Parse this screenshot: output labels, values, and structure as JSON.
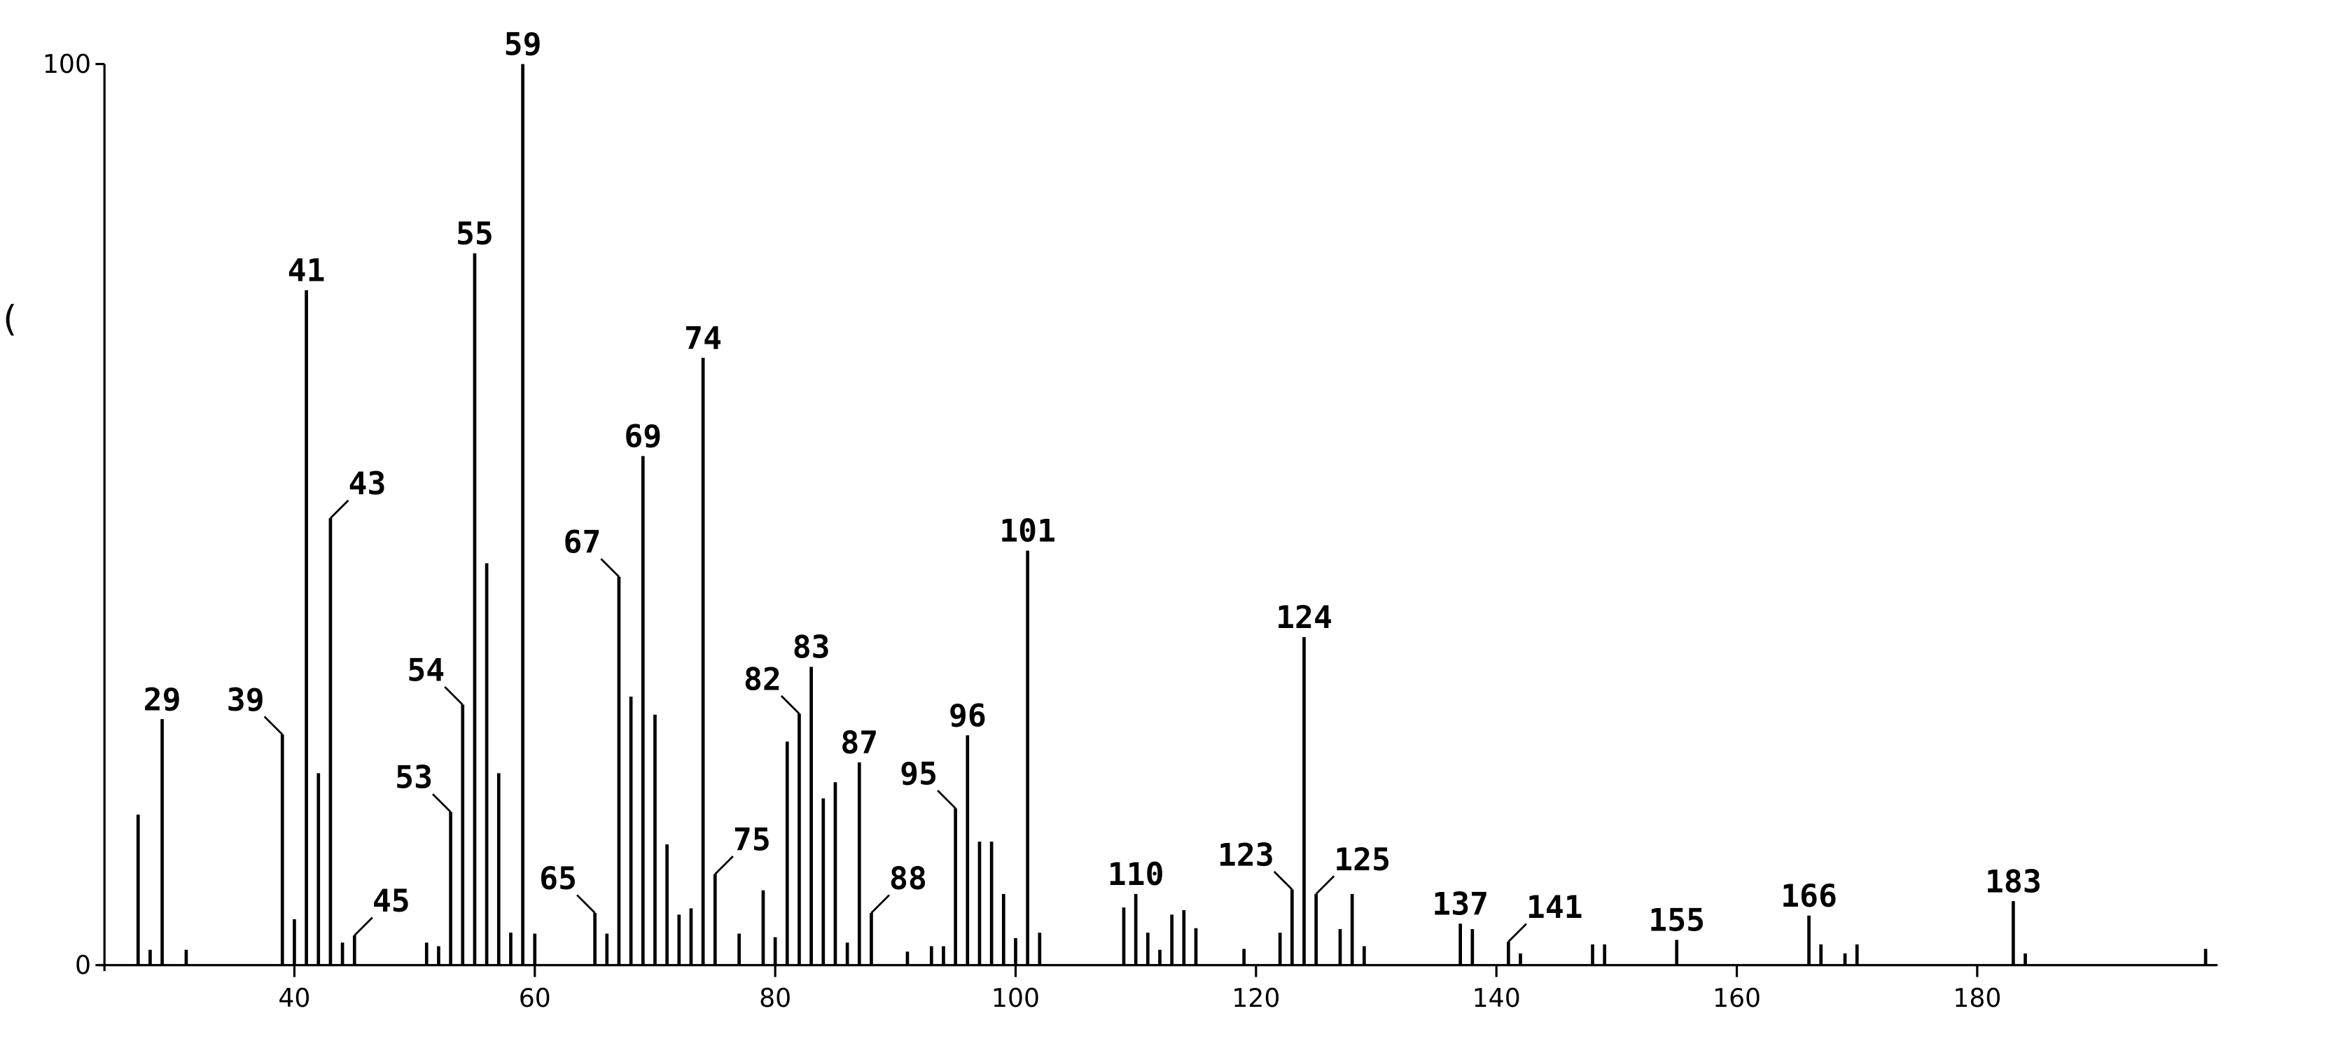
{
  "chart_data": {
    "type": "stick",
    "ylabel": "(",
    "color": "#000000",
    "x": [
      27,
      28,
      29,
      31,
      39,
      40,
      41,
      42,
      43,
      44,
      45,
      51,
      52,
      53,
      54,
      55,
      56,
      57,
      58,
      59,
      60,
      65,
      66,
      67,
      68,
      69,
      70,
      71,
      72,
      73,
      74,
      75,
      77,
      79,
      80,
      81,
      82,
      83,
      84,
      85,
      86,
      87,
      88,
      91,
      93,
      94,
      95,
      96,
      97,
      98,
      99,
      100,
      101,
      102,
      109,
      110,
      111,
      112,
      113,
      114,
      115,
      119,
      122,
      123,
      124,
      125,
      127,
      128,
      129,
      137,
      138,
      141,
      142,
      148,
      149,
      155,
      166,
      167,
      169,
      170,
      183,
      184,
      199
    ],
    "values": [
      16.7,
      1.7,
      27.3,
      1.7,
      25.6,
      5.1,
      74.9,
      21.3,
      49.6,
      2.5,
      3.3,
      2.5,
      2.1,
      17.0,
      28.9,
      79.0,
      44.6,
      21.3,
      3.6,
      100,
      3.5,
      5.8,
      3.5,
      43.1,
      29.8,
      56.5,
      27.8,
      13.4,
      5.6,
      6.3,
      67.4,
      10.1,
      3.5,
      8.3,
      3.1,
      24.8,
      27.9,
      33.1,
      18.5,
      20.3,
      2.5,
      22.5,
      5.8,
      1.5,
      2.1,
      2.1,
      17.4,
      25.5,
      13.7,
      13.7,
      7.9,
      3.0,
      46.0,
      3.6,
      6.4,
      7.9,
      3.6,
      1.7,
      5.6,
      6.1,
      4.1,
      1.8,
      3.6,
      8.4,
      36.4,
      7.9,
      4.0,
      7.9,
      2.1,
      4.6,
      4.0,
      2.6,
      1.3,
      2.3,
      2.3,
      2.8,
      5.5,
      2.3,
      1.3,
      2.3,
      7.1,
      1.3,
      1.8
    ],
    "peak_labels": [
      29,
      39,
      41,
      43,
      45,
      53,
      54,
      55,
      59,
      65,
      67,
      69,
      74,
      75,
      82,
      83,
      87,
      88,
      95,
      96,
      101,
      110,
      123,
      124,
      125,
      137,
      141,
      155,
      166,
      183
    ],
    "xlim": [
      24.2,
      200
    ],
    "ylim": [
      0,
      100
    ],
    "xticks": [
      40,
      60,
      80,
      100,
      120,
      140,
      160,
      180
    ],
    "yticks": [
      0,
      100
    ]
  }
}
